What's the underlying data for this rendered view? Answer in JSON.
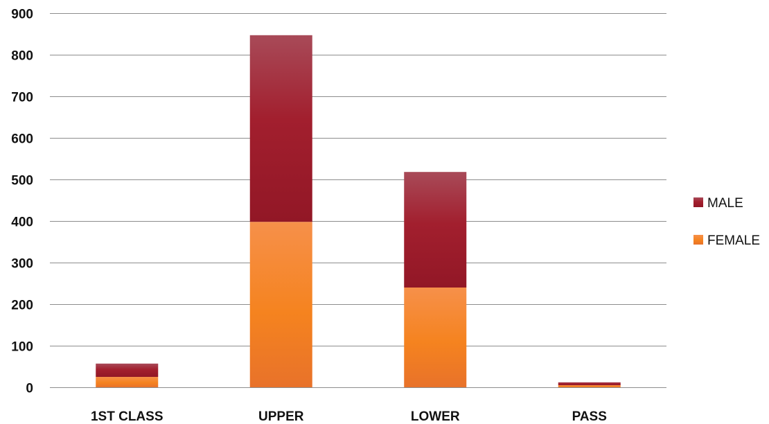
{
  "chart_data": {
    "type": "bar",
    "stacked": true,
    "title": "",
    "xlabel": "",
    "ylabel": "",
    "categories": [
      "1ST CLASS",
      "UPPER",
      "LOWER",
      "PASS"
    ],
    "series": [
      {
        "name": "FEMALE",
        "values": [
          25,
          398,
          240,
          5
        ],
        "color": "#f5831f"
      },
      {
        "name": "MALE",
        "values": [
          32,
          449,
          278,
          7
        ],
        "color": "#a01c2c"
      }
    ],
    "ylim": [
      0,
      900
    ],
    "yticks": [
      0,
      100,
      200,
      300,
      400,
      500,
      600,
      700,
      800,
      900
    ],
    "grid": true,
    "legend": {
      "position": "right",
      "order": [
        "MALE",
        "FEMALE"
      ]
    }
  }
}
